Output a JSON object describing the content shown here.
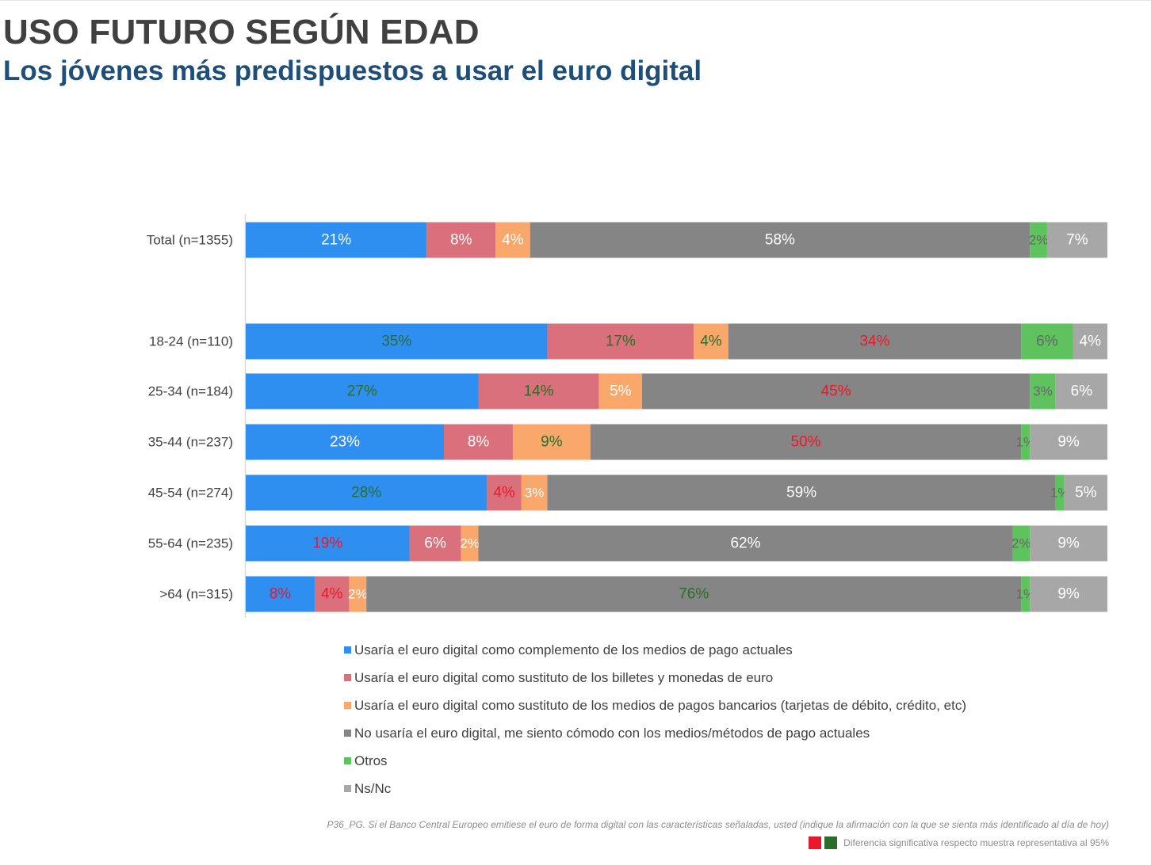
{
  "header": {
    "title": "USO FUTURO SEGÚN EDAD",
    "subtitle": "Los jóvenes más predispuestos a usar el euro digital"
  },
  "colors": {
    "blue": "#2e8ff0",
    "pink": "#d9707b",
    "orange": "#f9a76a",
    "dark_gray": "#858585",
    "green": "#5ec25e",
    "light_gray": "#a7a7a7",
    "label_white": "#ffffff",
    "label_green": "#2a6e2a",
    "label_red": "#e8192c",
    "label_gray": "#666666"
  },
  "chart_data": {
    "type": "bar",
    "orientation": "horizontal",
    "stacked": true,
    "unit": "%",
    "xlim": [
      0,
      100
    ],
    "categories": [
      "Total (n=1355)",
      "18-24 (n=110)",
      "25-34 (n=184)",
      "35-44 (n=237)",
      "45-54 (n=274)",
      "55-64 (n=235)",
      ">64 (n=315)"
    ],
    "series": [
      {
        "name": "Usaría el euro digital como complemento de los medios de pago actuales",
        "color": "#2e8ff0",
        "values": [
          21,
          35,
          27,
          23,
          28,
          19,
          8
        ],
        "label_colors": [
          "white",
          "green",
          "green",
          "white",
          "green",
          "red",
          "red"
        ]
      },
      {
        "name": "Usaría el euro digital como sustituto de los billetes y monedas de euro",
        "color": "#d9707b",
        "values": [
          8,
          17,
          14,
          8,
          4,
          6,
          4
        ],
        "label_colors": [
          "white",
          "green",
          "green",
          "white",
          "red",
          "white",
          "red"
        ]
      },
      {
        "name": "Usaría el euro digital como sustituto de los medios de pagos bancarios (tarjetas de débito, crédito, etc)",
        "color": "#f9a76a",
        "values": [
          4,
          4,
          5,
          9,
          3,
          2,
          2
        ],
        "label_colors": [
          "white",
          "green",
          "white",
          "green",
          "white",
          "white",
          "white"
        ]
      },
      {
        "name": "No usaría el euro digital, me siento cómodo con los medios/métodos de pago actuales",
        "color": "#858585",
        "values": [
          58,
          34,
          45,
          50,
          59,
          62,
          76
        ],
        "label_colors": [
          "white",
          "red",
          "red",
          "red",
          "white",
          "white",
          "green"
        ]
      },
      {
        "name": "Otros",
        "color": "#5ec25e",
        "values": [
          2,
          6,
          3,
          1,
          1,
          2,
          1
        ],
        "label_colors": [
          "gray",
          "gray",
          "gray",
          "gray",
          "gray",
          "gray",
          "gray"
        ]
      },
      {
        "name": "Ns/Nc",
        "color": "#a7a7a7",
        "values": [
          7,
          4,
          6,
          9,
          5,
          9,
          9
        ],
        "label_colors": [
          "white",
          "white",
          "white",
          "white",
          "white",
          "white",
          "white"
        ]
      }
    ]
  },
  "footer": {
    "question": "P36_PG. Si el Banco Central Europeo emitiese el euro de forma digital con las características señaladas, usted (indique la afirmación con la que se sienta más identificado al día de hoy)",
    "significance_note": "Diferencia significativa respecto muestra representativa al 95%",
    "significance_colors": [
      "#e8192c",
      "#2a6e2a"
    ]
  }
}
